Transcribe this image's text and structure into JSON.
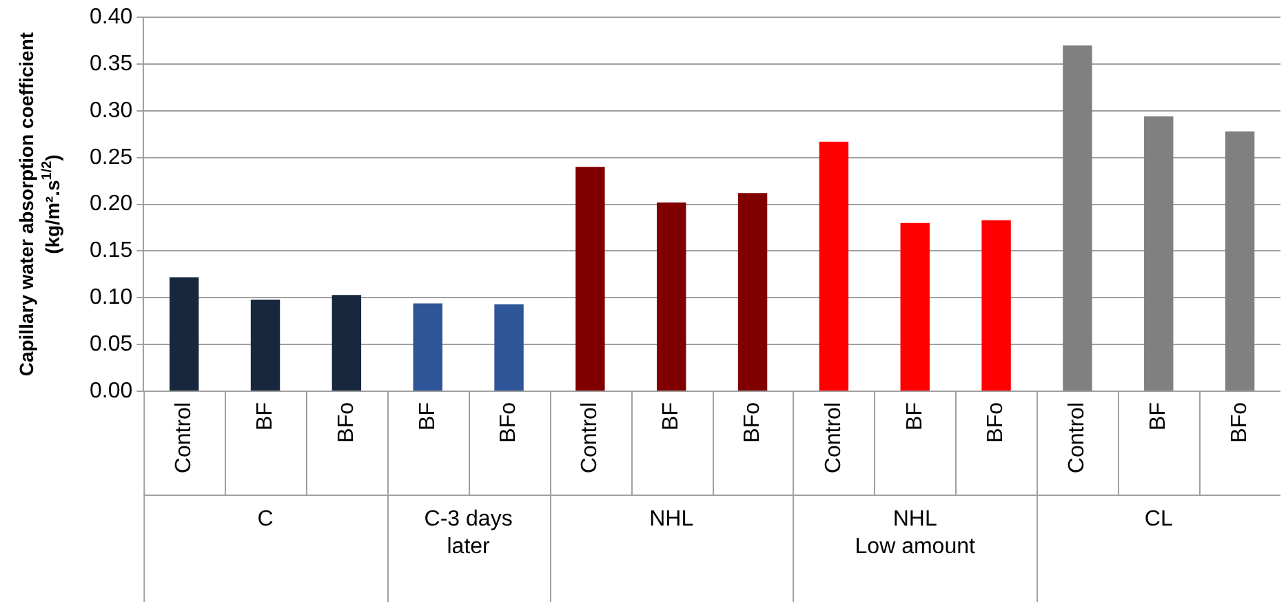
{
  "chart_data": {
    "type": "bar",
    "ylabel": "Capillary water absorption coefficient\n(kg/m².s$^{1/2}$)",
    "categories": [
      "Control",
      "BF",
      "BFo",
      "BF",
      "BFo",
      "Control",
      "BF",
      "BFo",
      "Control",
      "BF",
      "BFo",
      "Control",
      "BF",
      "BFo"
    ],
    "values": [
      0.122,
      0.098,
      0.103,
      0.094,
      0.093,
      0.24,
      0.202,
      0.212,
      0.267,
      0.18,
      0.183,
      0.37,
      0.294,
      0.278
    ],
    "colors": [
      "#17273d",
      "#17273d",
      "#17273d",
      "#2e5597",
      "#2e5597",
      "#800000",
      "#800000",
      "#800000",
      "#ff0000",
      "#ff0000",
      "#ff0000",
      "#808080",
      "#808080",
      "#808080"
    ],
    "annotations": [
      "C",
      "C-3 days\nlater",
      "NHL",
      "NHL\nLow amount",
      "CL"
    ],
    "ylim": [
      0,
      0.4
    ],
    "yticks": [
      {
        "value": 0,
        "label": "0.00"
      },
      {
        "value": 0.05,
        "label": "0.05"
      },
      {
        "value": 0.1,
        "label": "0.10"
      },
      {
        "value": 0.15,
        "label": "0.15"
      },
      {
        "value": 0.2,
        "label": "0.20"
      },
      {
        "value": 0.25,
        "label": "0.25"
      },
      {
        "value": 0.3,
        "label": "0.30"
      },
      {
        "value": 0.35,
        "label": "0.35"
      },
      {
        "value": 0.4,
        "label": "0.40"
      }
    ],
    "grid": "y",
    "legend": false
  }
}
